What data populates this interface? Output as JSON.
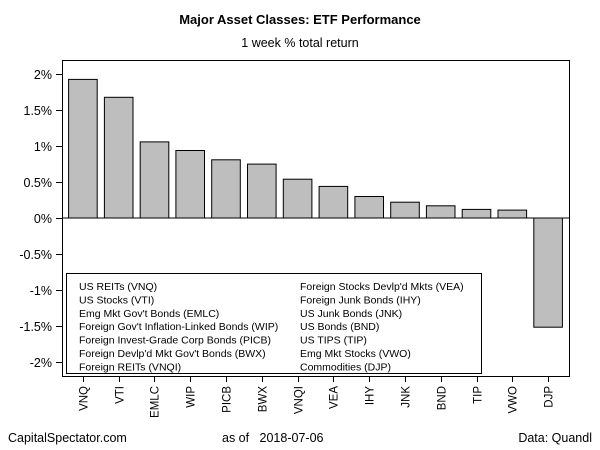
{
  "chart_data": {
    "type": "bar",
    "title": "Major Asset Classes: ETF Performance",
    "subtitle": "1 week % total return",
    "categories": [
      "VNQ",
      "VTI",
      "EMLC",
      "WIP",
      "PICB",
      "BWX",
      "VNQI",
      "VEA",
      "IHY",
      "JNK",
      "BND",
      "TIP",
      "VWO",
      "DJP"
    ],
    "values": [
      1.93,
      1.68,
      1.06,
      0.94,
      0.81,
      0.75,
      0.54,
      0.44,
      0.3,
      0.22,
      0.17,
      0.12,
      0.11,
      -1.52
    ],
    "ylim": [
      -2.2,
      2.2
    ],
    "yticks": [
      2,
      1.5,
      1,
      0.5,
      0,
      -0.5,
      -1,
      -1.5,
      -2
    ],
    "ytick_labels": [
      "2%",
      "1.5%",
      "1%",
      "0.5%",
      "0%",
      "-0.5%",
      "-1%",
      "-1.5%",
      "-2%"
    ],
    "bar_color": "#bebebe",
    "legend_position": "bottom-left",
    "legend": {
      "col1": [
        "US REITs (VNQ)",
        "US Stocks (VTI)",
        "Emg Mkt Gov't Bonds (EMLC)",
        "Foreign Gov't Inflation-Linked Bonds (WIP)",
        "Foreign Invest-Grade Corp Bonds (PICB)",
        "Foreign Devlp'd Mkt Gov't Bonds (BWX)",
        "Foreign REITs (VNQI)"
      ],
      "col2": [
        "Foreign Stocks Devlp'd Mkts (VEA)",
        "Foreign Junk Bonds (IHY)",
        "US Junk Bonds (JNK)",
        "US Bonds (BND)",
        "US TIPS (TIP)",
        "Emg Mkt Stocks (VWO)",
        "Commodities (DJP)"
      ]
    }
  },
  "footer": {
    "source_site": "CapitalSpectator.com",
    "as_of_label": "as of",
    "date": "2018-07-06",
    "data_credit": "Data: Quandl"
  }
}
